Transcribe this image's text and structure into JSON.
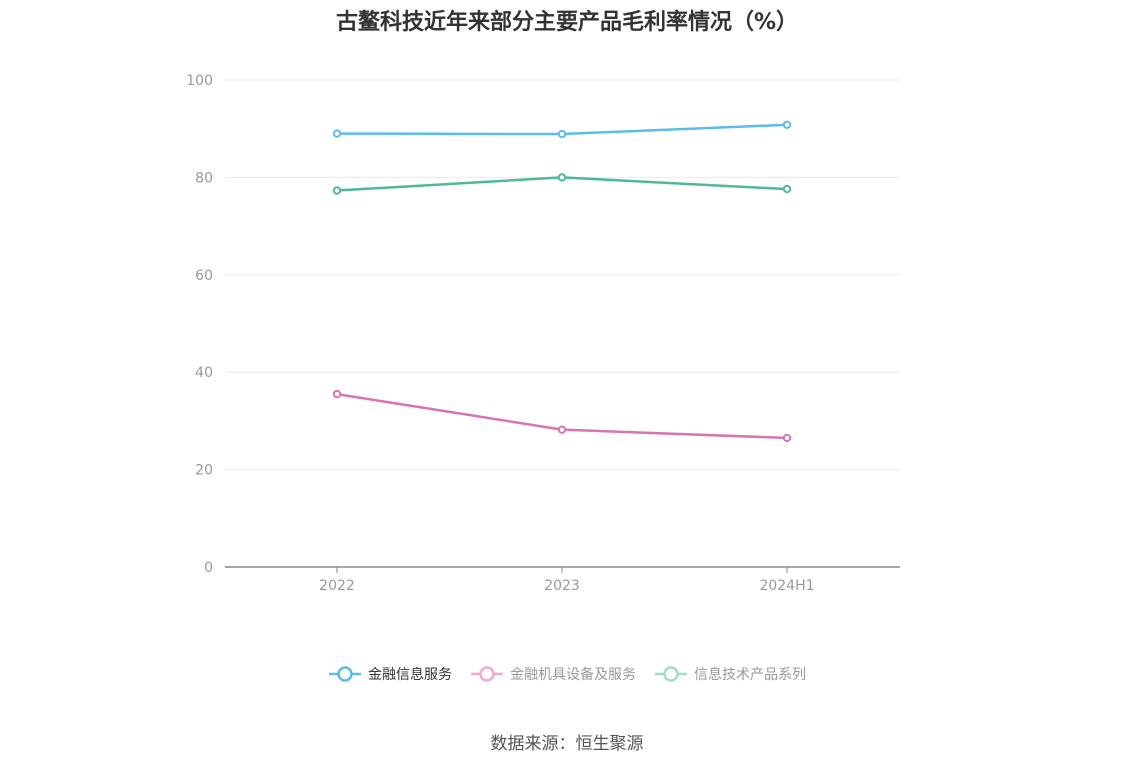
{
  "chart_data": {
    "type": "line",
    "title": "古鳌科技近年来部分主要产品毛利率情况（%）",
    "categories": [
      "2022",
      "2023",
      "2024H1"
    ],
    "ylim": [
      0,
      100
    ],
    "yticks": [
      "0",
      "20",
      "40",
      "60",
      "80",
      "100"
    ],
    "grid": true,
    "legend_position": "bottom",
    "series": [
      {
        "name": "金融信息服务",
        "values": [
          89.0,
          88.9,
          90.8
        ],
        "color": "#5bbbe9",
        "legend_faded": false
      },
      {
        "name": "金融机具设备及服务",
        "values": [
          35.5,
          28.2,
          26.5
        ],
        "color": "#d774b4",
        "legend_faded": true,
        "legend_color": "#f0a9d3"
      },
      {
        "name": "信息技术产品系列",
        "values": [
          77.3,
          80.0,
          77.6
        ],
        "color": "#4db89a",
        "legend_faded": true,
        "legend_color": "#a3dccb"
      }
    ],
    "source": "数据来源：恒生聚源"
  },
  "colors": {
    "axis": "#888888",
    "grid": "#e6e9f0",
    "title": "#333333",
    "legend_active_text": "#333333",
    "legend_faded_text": "#999999"
  }
}
